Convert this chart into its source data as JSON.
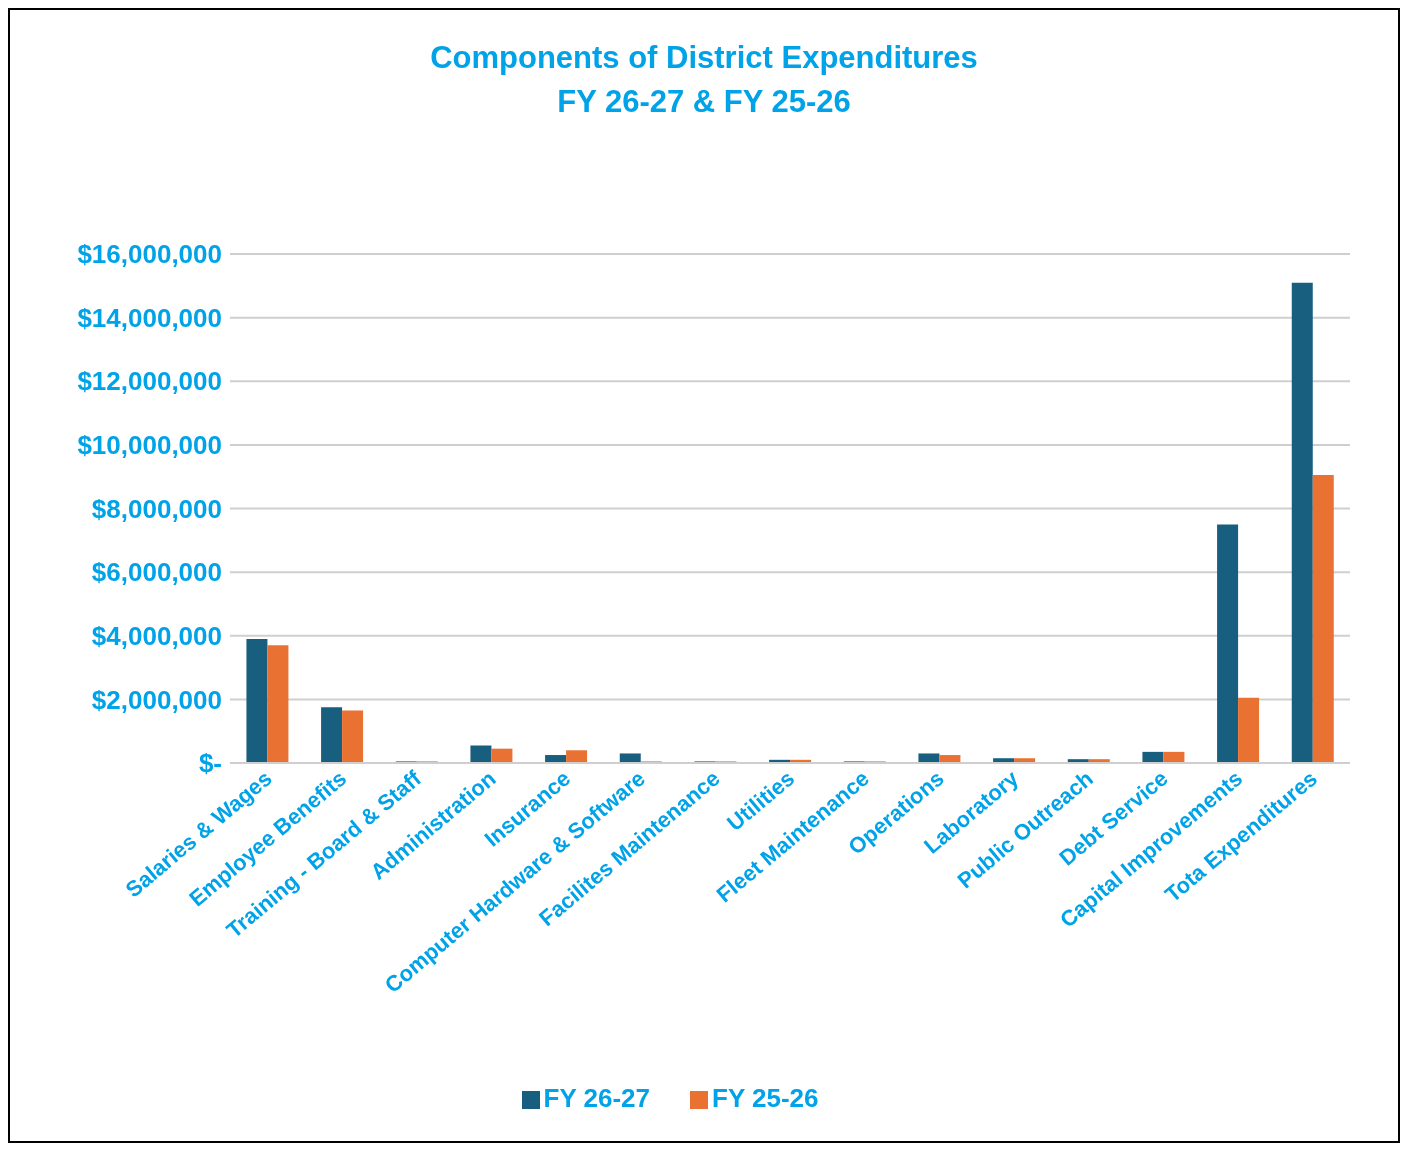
{
  "chart_data": {
    "type": "bar",
    "title": "Components of District Expenditures\nFY 26-27 & FY 25-26",
    "categories": [
      "Salaries & Wages",
      "Employee Benefits",
      "Training - Board & Staff",
      "Administration",
      "Insurance",
      "Computer Hardware & Software",
      "Facilites Maintenance",
      "Utilities",
      "Fleet Maintenance",
      "Operations",
      "Laboratory",
      "Public Outreach",
      "Debt Service",
      "Capital Improvements",
      "Tota Expenditures"
    ],
    "series": [
      {
        "name": "FY 26-27",
        "color": "#175e7f",
        "values": [
          3900000,
          1750000,
          50000,
          550000,
          250000,
          300000,
          50000,
          100000,
          50000,
          300000,
          150000,
          120000,
          350000,
          7500000,
          15100000
        ]
      },
      {
        "name": "FY 25-26",
        "color": "#e97132",
        "values": [
          3700000,
          1650000,
          50000,
          450000,
          400000,
          50000,
          50000,
          100000,
          50000,
          250000,
          150000,
          120000,
          350000,
          2050000,
          9050000
        ]
      }
    ],
    "ylim": [
      0,
      16000000
    ],
    "yticks": [
      {
        "value": 0,
        "label": "$-"
      },
      {
        "value": 2000000,
        "label": "$2,000,000"
      },
      {
        "value": 4000000,
        "label": "$4,000,000"
      },
      {
        "value": 6000000,
        "label": "$6,000,000"
      },
      {
        "value": 8000000,
        "label": "$8,000,000"
      },
      {
        "value": 10000000,
        "label": "$10,000,000"
      },
      {
        "value": 12000000,
        "label": "$12,000,000"
      },
      {
        "value": 14000000,
        "label": "$14,000,000"
      },
      {
        "value": 16000000,
        "label": "$16,000,000"
      }
    ],
    "grid": "y",
    "legend": "bottom"
  }
}
